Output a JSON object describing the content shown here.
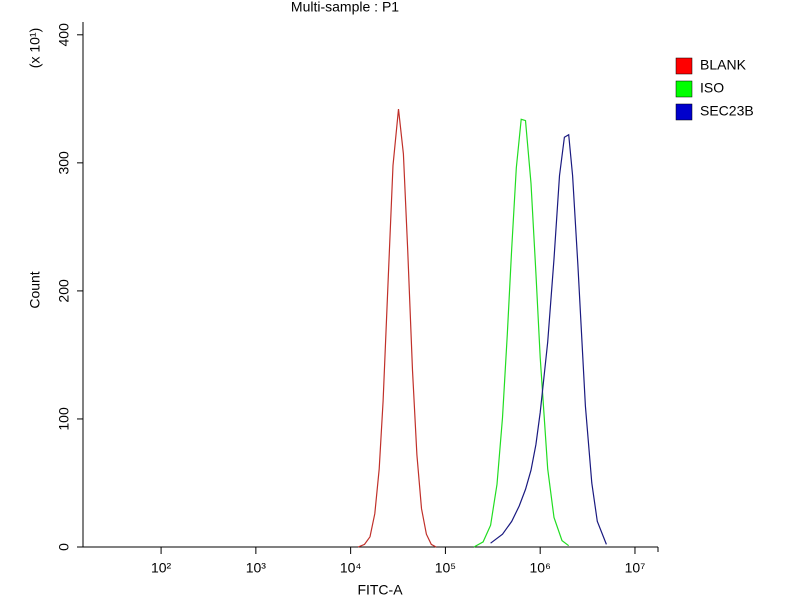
{
  "chart_data": {
    "type": "histogram-line",
    "title": "Multi-sample : P1",
    "x_label": "FITC-A",
    "y_label": "Count",
    "y_multiplier": "(x 10¹)",
    "xscale": "log",
    "xlim": [
      15,
      17500000
    ],
    "xticks": [
      {
        "value": 100,
        "label": "10²"
      },
      {
        "value": 1000,
        "label": "10³"
      },
      {
        "value": 10000,
        "label": "10⁴"
      },
      {
        "value": 100000,
        "label": "10⁵"
      },
      {
        "value": 1000000,
        "label": "10⁶"
      },
      {
        "value": 10000000,
        "label": "10⁷"
      }
    ],
    "ylim": [
      0,
      410
    ],
    "yticks": [
      0,
      100,
      200,
      300,
      400
    ],
    "legend": "right",
    "series": [
      {
        "name": "BLANK",
        "color": "#c0302a",
        "swatch": "#ff0000",
        "x": [
          12000,
          14000,
          16000,
          18000,
          20000,
          22000,
          25000,
          28000,
          32000,
          36000,
          40000,
          45000,
          50000,
          56000,
          63000,
          71000,
          80000
        ],
        "values": [
          0,
          2,
          8,
          26,
          61,
          114,
          213,
          298,
          342,
          307,
          232,
          138,
          72,
          30,
          10,
          2,
          0
        ]
      },
      {
        "name": "ISO",
        "color": "#22dd22",
        "swatch": "#00ff00",
        "x": [
          200000,
          250000,
          300000,
          350000,
          400000,
          450000,
          500000,
          560000,
          630000,
          700000,
          800000,
          900000,
          1000000,
          1200000,
          1400000,
          1700000,
          2000000
        ],
        "values": [
          0,
          4,
          17,
          49,
          101,
          166,
          233,
          296,
          334,
          333,
          284,
          214,
          148,
          61,
          23,
          5,
          1
        ]
      },
      {
        "name": "SEC23B",
        "color": "#1a1a80",
        "swatch": "#0000cc",
        "x": [
          300000,
          400000,
          500000,
          600000,
          700000,
          800000,
          900000,
          1000000,
          1200000,
          1400000,
          1600000,
          1800000,
          2000000,
          2200000,
          2500000,
          3000000,
          3500000,
          4000000,
          5000000
        ],
        "values": [
          3,
          10,
          20,
          32,
          45,
          60,
          80,
          105,
          160,
          225,
          290,
          320,
          322,
          290,
          220,
          110,
          50,
          20,
          2
        ]
      }
    ]
  }
}
